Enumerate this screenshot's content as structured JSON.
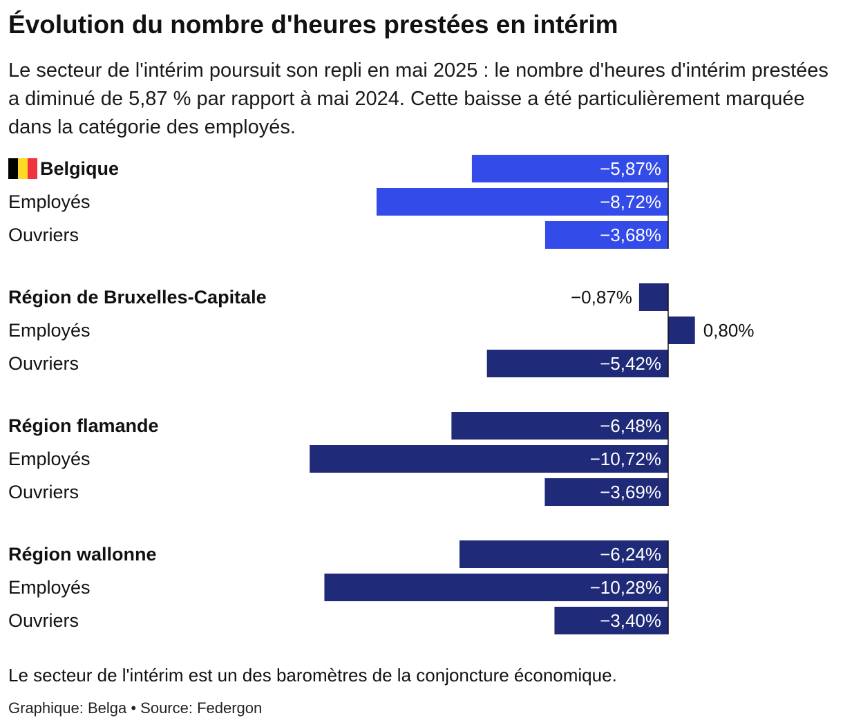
{
  "title": "Évolution du nombre d'heures prestées en intérim",
  "subtitle": "Le secteur de l'intérim poursuit son repli en mai 2025 : le nombre d'heures d'intérim prestées a diminué de 5,87 % par rapport à mai 2024. Cette baisse a été particulièrement marquée dans la catégorie des employés.",
  "note": "Le secteur de l'intérim est un des baromètres de la conjoncture économique.",
  "credits": "Graphique: Belga • Source: Federgon",
  "colors": {
    "highlight": "#334be8",
    "default": "#1f2a78",
    "axis": "#111111",
    "flag": [
      "#000000",
      "#fdda24",
      "#ef3340"
    ]
  },
  "chart_data": {
    "type": "bar",
    "orientation": "horizontal",
    "unit": "%",
    "groups": [
      {
        "label": "Belgique",
        "flag": true,
        "highlight": true,
        "rows": [
          {
            "label": "Belgique",
            "value": -5.87,
            "display": "−5,87%",
            "bold": true
          },
          {
            "label": "Employés",
            "value": -8.72,
            "display": "−8,72%",
            "bold": false
          },
          {
            "label": "Ouvriers",
            "value": -3.68,
            "display": "−3,68%",
            "bold": false
          }
        ]
      },
      {
        "label": "Région de Bruxelles-Capitale",
        "flag": false,
        "highlight": false,
        "rows": [
          {
            "label": "Région de Bruxelles-Capitale",
            "value": -0.87,
            "display": "−0,87%",
            "bold": true
          },
          {
            "label": "Employés",
            "value": 0.8,
            "display": "0,80%",
            "bold": false
          },
          {
            "label": "Ouvriers",
            "value": -5.42,
            "display": "−5,42%",
            "bold": false
          }
        ]
      },
      {
        "label": "Région flamande",
        "flag": false,
        "highlight": false,
        "rows": [
          {
            "label": "Région flamande",
            "value": -6.48,
            "display": "−6,48%",
            "bold": true
          },
          {
            "label": "Employés",
            "value": -10.72,
            "display": "−10,72%",
            "bold": false
          },
          {
            "label": "Ouvriers",
            "value": -3.69,
            "display": "−3,69%",
            "bold": false
          }
        ]
      },
      {
        "label": "Région wallonne",
        "flag": false,
        "highlight": false,
        "rows": [
          {
            "label": "Région wallonne",
            "value": -6.24,
            "display": "−6,24%",
            "bold": true
          },
          {
            "label": "Employés",
            "value": -10.28,
            "display": "−10,28%",
            "bold": false
          },
          {
            "label": "Ouvriers",
            "value": -3.4,
            "display": "−3,40%",
            "bold": false
          }
        ]
      }
    ]
  }
}
